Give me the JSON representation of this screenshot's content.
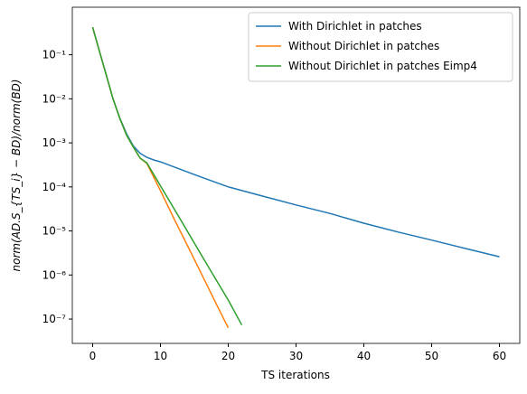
{
  "chart_data": {
    "type": "line",
    "xlabel": "TS iterations",
    "ylabel": "norm(AD.S_{TS_i} − BD)/norm(BD)",
    "xlim": [
      -3,
      63
    ],
    "xticks": [
      0,
      10,
      20,
      30,
      40,
      50,
      60
    ],
    "ylim": [
      2.8e-08,
      1.2
    ],
    "yscale": "log",
    "yticks": [
      {
        "value": 1e-07,
        "label": "10⁻⁷"
      },
      {
        "value": 1e-06,
        "label": "10⁻⁶"
      },
      {
        "value": 1e-05,
        "label": "10⁻⁵"
      },
      {
        "value": 0.0001,
        "label": "10⁻⁴"
      },
      {
        "value": 0.001,
        "label": "10⁻³"
      },
      {
        "value": 0.01,
        "label": "10⁻²"
      },
      {
        "value": 0.1,
        "label": "10⁻¹"
      }
    ],
    "legend": "upper right",
    "series": [
      {
        "name": "With Dirichlet in patches",
        "color": "#1f77b4",
        "x": [
          0,
          1,
          2,
          3,
          4,
          5,
          6,
          7,
          8,
          9,
          10,
          15,
          20,
          25,
          30,
          35,
          40,
          45,
          50,
          55,
          60
        ],
        "values": [
          0.42,
          0.12,
          0.035,
          0.01,
          0.0037,
          0.0016,
          0.00085,
          0.00058,
          0.00047,
          0.00041,
          0.00037,
          0.00019,
          0.0001,
          6.2e-05,
          3.9e-05,
          2.5e-05,
          1.5e-05,
          9.5e-06,
          6.2e-06,
          4e-06,
          2.6e-06
        ]
      },
      {
        "name": "Without Dirichlet in patches",
        "color": "#ff7f0e",
        "x": [
          0,
          1,
          2,
          3,
          4,
          5,
          6,
          7,
          8,
          10,
          12,
          14,
          16,
          18,
          20
        ],
        "values": [
          0.42,
          0.12,
          0.035,
          0.01,
          0.0036,
          0.0015,
          0.0008,
          0.00045,
          0.00034,
          8.2e-05,
          1.9e-05,
          4.6e-06,
          1.1e-06,
          2.6e-07,
          6.3e-08
        ]
      },
      {
        "name": "Without Dirichlet in patches Eimp4",
        "color": "#2ca02c",
        "x": [
          0,
          1,
          2,
          3,
          4,
          5,
          6,
          7,
          8,
          10,
          12,
          14,
          16,
          18,
          20,
          22
        ],
        "values": [
          0.42,
          0.12,
          0.035,
          0.01,
          0.0036,
          0.0015,
          0.0008,
          0.00045,
          0.00035,
          0.000106,
          3.2e-05,
          9.7e-06,
          2.9e-06,
          8.8e-07,
          2.7e-07,
          7.3e-08
        ]
      }
    ]
  }
}
